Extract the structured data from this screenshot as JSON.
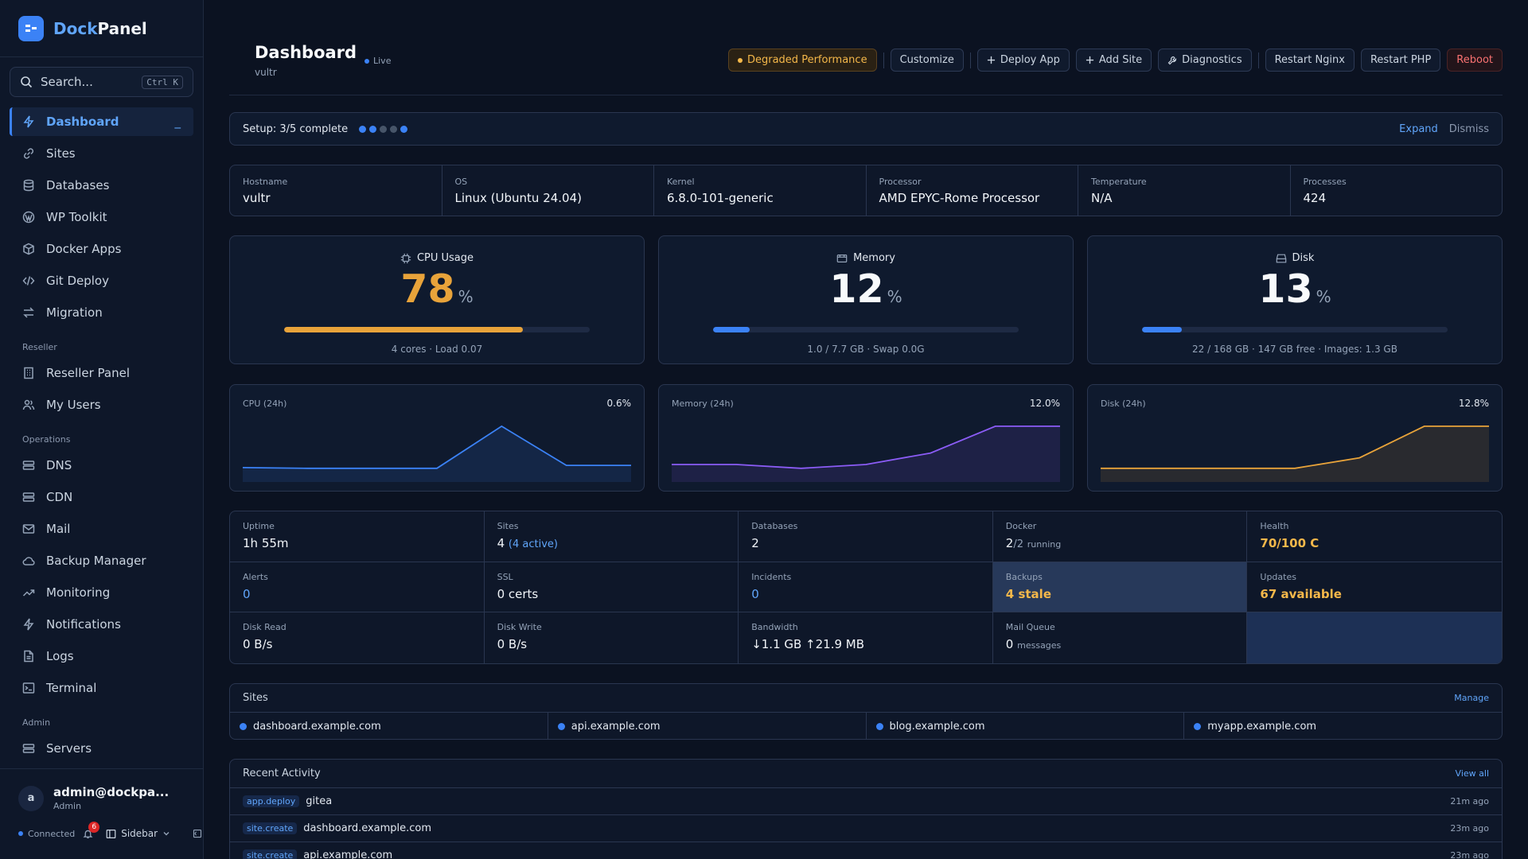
{
  "app": {
    "name_part1": "Dock",
    "name_part2": "Panel"
  },
  "search": {
    "placeholder": "Search...",
    "shortcut": "Ctrl K"
  },
  "nav": {
    "main": [
      {
        "label": "Dashboard",
        "icon": "bolt-icon"
      },
      {
        "label": "Sites",
        "icon": "link-icon"
      },
      {
        "label": "Databases",
        "icon": "database-icon"
      },
      {
        "label": "WP Toolkit",
        "icon": "wordpress-icon"
      },
      {
        "label": "Docker Apps",
        "icon": "box-icon"
      },
      {
        "label": "Git Deploy",
        "icon": "code-icon"
      },
      {
        "label": "Migration",
        "icon": "swap-icon"
      }
    ],
    "active_marker": "_",
    "reseller_title": "Reseller",
    "reseller": [
      {
        "label": "Reseller Panel",
        "icon": "building-icon"
      },
      {
        "label": "My Users",
        "icon": "users-icon"
      }
    ],
    "operations_title": "Operations",
    "operations": [
      {
        "label": "DNS",
        "icon": "dns-icon"
      },
      {
        "label": "CDN",
        "icon": "cdn-icon"
      },
      {
        "label": "Mail",
        "icon": "mail-icon"
      },
      {
        "label": "Backup Manager",
        "icon": "cloud-icon"
      },
      {
        "label": "Monitoring",
        "icon": "trend-icon"
      },
      {
        "label": "Notifications",
        "icon": "bolt-icon"
      },
      {
        "label": "Logs",
        "icon": "file-icon"
      },
      {
        "label": "Terminal",
        "icon": "terminal-icon"
      }
    ],
    "admin_title": "Admin",
    "admin": [
      {
        "label": "Servers",
        "icon": "server-icon"
      }
    ]
  },
  "user": {
    "initial": "a",
    "name": "admin@dockpa...",
    "role": "Admin"
  },
  "status": {
    "connection": "Connected",
    "notifications_count": "6",
    "sidebar_label": "Sidebar"
  },
  "header": {
    "title": "Dashboard",
    "live_label": "Live",
    "subtitle": "vultr",
    "buttons": {
      "status": "Degraded Performance",
      "customize": "Customize",
      "deploy": "Deploy App",
      "add_site": "Add Site",
      "diagnostics": "Diagnostics",
      "restart_nginx": "Restart Nginx",
      "restart_php": "Restart PHP",
      "reboot": "Reboot"
    }
  },
  "setup": {
    "label": "Setup: 3/5 complete",
    "steps_done": [
      true,
      true,
      false,
      false,
      true
    ],
    "expand": "Expand",
    "dismiss": "Dismiss"
  },
  "system_info": [
    {
      "label": "Hostname",
      "value": "vultr"
    },
    {
      "label": "OS",
      "value": "Linux (Ubuntu 24.04)"
    },
    {
      "label": "Kernel",
      "value": "6.8.0-101-generic"
    },
    {
      "label": "Processor",
      "value": "AMD EPYC-Rome Processor"
    },
    {
      "label": "Temperature",
      "value": "N/A"
    },
    {
      "label": "Processes",
      "value": "424"
    }
  ],
  "gauges": {
    "cpu": {
      "title": "CPU Usage",
      "value": "78",
      "unit": "%",
      "fill": 0.78,
      "color": "#e8a33a",
      "sub": "4 cores · Load 0.07"
    },
    "memory": {
      "title": "Memory",
      "value": "12",
      "unit": "%",
      "fill": 0.12,
      "color": "#3b82f6",
      "sub": "1.0 / 7.7 GB · Swap 0.0G"
    },
    "disk": {
      "title": "Disk",
      "value": "13",
      "unit": "%",
      "fill": 0.13,
      "color": "#3b82f6",
      "sub": "22 / 168 GB · 147 GB free · Images: 1.3 GB"
    }
  },
  "charts": {
    "cpu": {
      "title": "CPU (24h)",
      "current": "0.6%",
      "color": "#3b82f6",
      "values": [
        0.3,
        0.2,
        0.2,
        0.2,
        6.0,
        0.6,
        0.6
      ]
    },
    "memory": {
      "title": "Memory (24h)",
      "current": "12.0%",
      "color": "#8b5cf6",
      "values": [
        11.0,
        11.0,
        10.9,
        11.0,
        11.3,
        12.0,
        12.0
      ]
    },
    "disk": {
      "title": "Disk (24h)",
      "current": "12.8%",
      "color": "#e8a33a",
      "values": [
        12.6,
        12.6,
        12.6,
        12.6,
        12.65,
        12.8,
        12.8
      ]
    }
  },
  "stats": {
    "uptime": {
      "label": "Uptime",
      "value": "1h 55m"
    },
    "sites": {
      "label": "Sites",
      "value": "4",
      "extra": "(4 active)"
    },
    "databases": {
      "label": "Databases",
      "value": "2"
    },
    "docker": {
      "label": "Docker",
      "value": "2",
      "extra": "/2",
      "suffix": "running"
    },
    "health": {
      "label": "Health",
      "value": "70/100 C"
    },
    "alerts": {
      "label": "Alerts",
      "value": "0"
    },
    "ssl": {
      "label": "SSL",
      "value": "0 certs"
    },
    "incidents": {
      "label": "Incidents",
      "value": "0"
    },
    "backups": {
      "label": "Backups",
      "value": "4 stale"
    },
    "updates": {
      "label": "Updates",
      "value": "67 available"
    },
    "disk_read": {
      "label": "Disk Read",
      "value": "0 B/s"
    },
    "disk_write": {
      "label": "Disk Write",
      "value": "0 B/s"
    },
    "bandwidth": {
      "label": "Bandwidth",
      "value": "↓1.1 GB ↑21.9 MB"
    },
    "mail_queue": {
      "label": "Mail Queue",
      "value": "0",
      "suffix": "messages"
    }
  },
  "sites": {
    "title": "Sites",
    "manage": "Manage",
    "items": [
      "dashboard.example.com",
      "api.example.com",
      "blog.example.com",
      "myapp.example.com"
    ]
  },
  "activity": {
    "title": "Recent Activity",
    "view_all": "View all",
    "items": [
      {
        "tag": "app.deploy",
        "name": "gitea",
        "time": "21m ago"
      },
      {
        "tag": "site.create",
        "name": "dashboard.example.com",
        "time": "23m ago"
      },
      {
        "tag": "site.create",
        "name": "api.example.com",
        "time": "23m ago"
      }
    ]
  }
}
